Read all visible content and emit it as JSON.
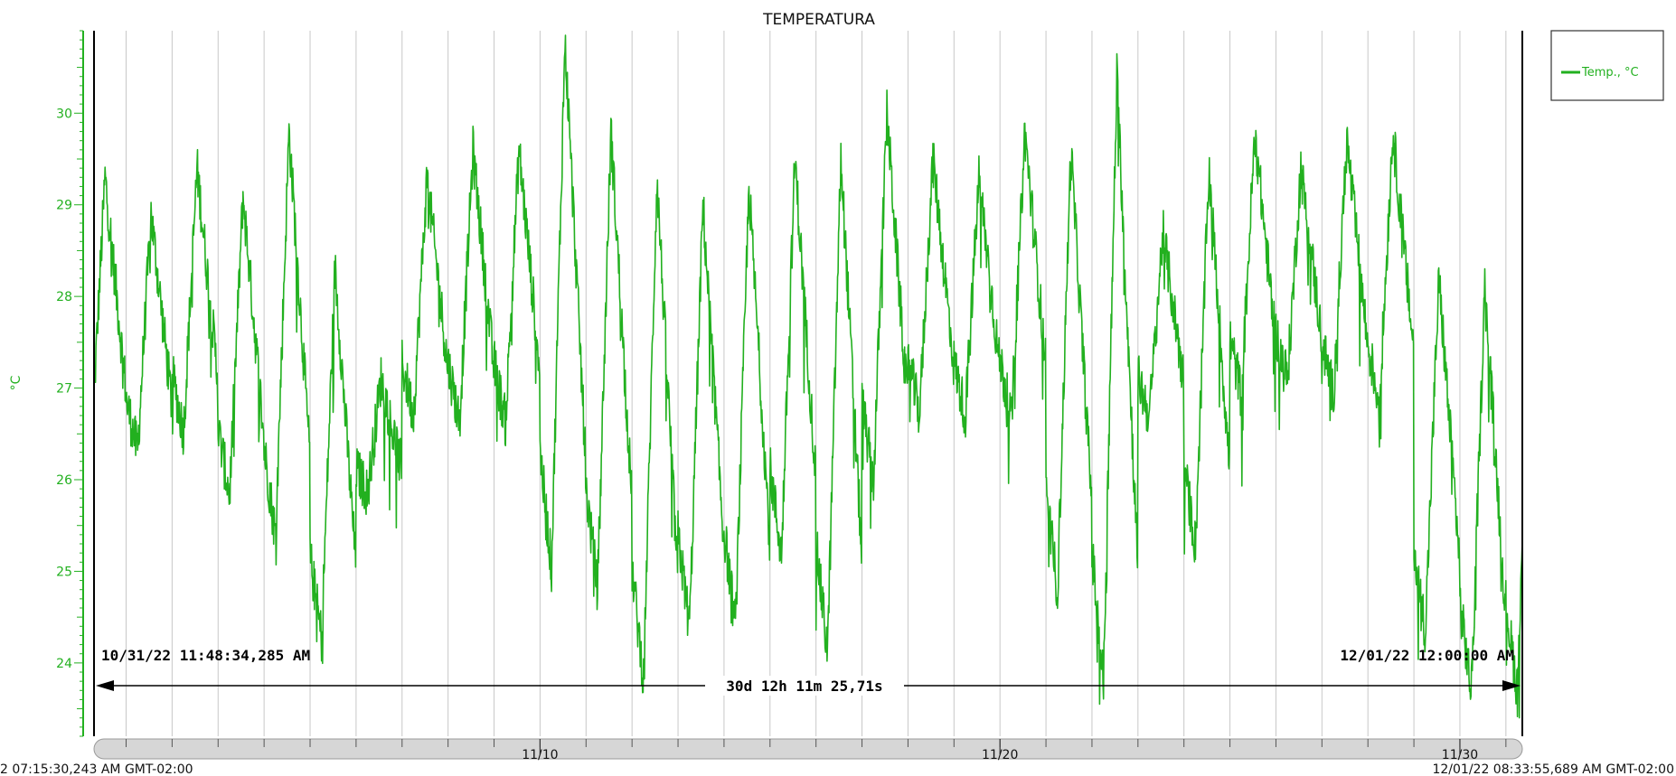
{
  "chart_data": {
    "type": "line",
    "title": "TEMPERATURA",
    "ylabel": "°C",
    "xlabel": "",
    "ylim": [
      23.2,
      30.9
    ],
    "yticks": [
      24,
      25,
      26,
      27,
      28,
      29,
      30
    ],
    "x_range": [
      "10/31/22 07:15",
      "12/01/22 08:34"
    ],
    "xtick_labels": [
      "11/10",
      "11/20",
      "11/30"
    ],
    "grid": true,
    "legend": {
      "position": "top-right",
      "entries": [
        "Temp., °C"
      ]
    },
    "colors": {
      "series": "#22b01f",
      "axis": "#22b01f",
      "grid": "#c8c8c8",
      "cursor": "#000000"
    },
    "series": [
      {
        "name": "Temp., °C",
        "daily_min": [
          26.3,
          26.2,
          26.4,
          25.7,
          25.2,
          24.1,
          25.8,
          26.6,
          26.5,
          26.5,
          24.8,
          24.6,
          23.6,
          24.2,
          24.2,
          25.0,
          23.9,
          25.8,
          26.6,
          26.6,
          26.5,
          24.6,
          23.5,
          26.6,
          25.1,
          26.8,
          27.0,
          26.8,
          26.7,
          24.2,
          23.5
        ],
        "daily_max": [
          29.3,
          28.9,
          29.4,
          29.1,
          29.8,
          28.3,
          27.1,
          29.3,
          29.6,
          29.6,
          30.8,
          29.8,
          29.3,
          29.0,
          29.2,
          29.5,
          29.5,
          30.0,
          29.5,
          29.3,
          29.8,
          29.6,
          30.4,
          28.7,
          29.4,
          29.8,
          29.4,
          29.7,
          29.8,
          28.2,
          28.1
        ]
      }
    ],
    "annotations": {
      "start": "10/31/22 11:48:34,285 AM",
      "end": "12/01/22 12:00:00 AM",
      "duration": "30d 12h 11m 25,71s"
    },
    "footer": {
      "left": "2 07:15:30,243 AM GMT-02:00",
      "right": "12/01/22 08:33:55,689 AM GMT-02:00"
    }
  }
}
